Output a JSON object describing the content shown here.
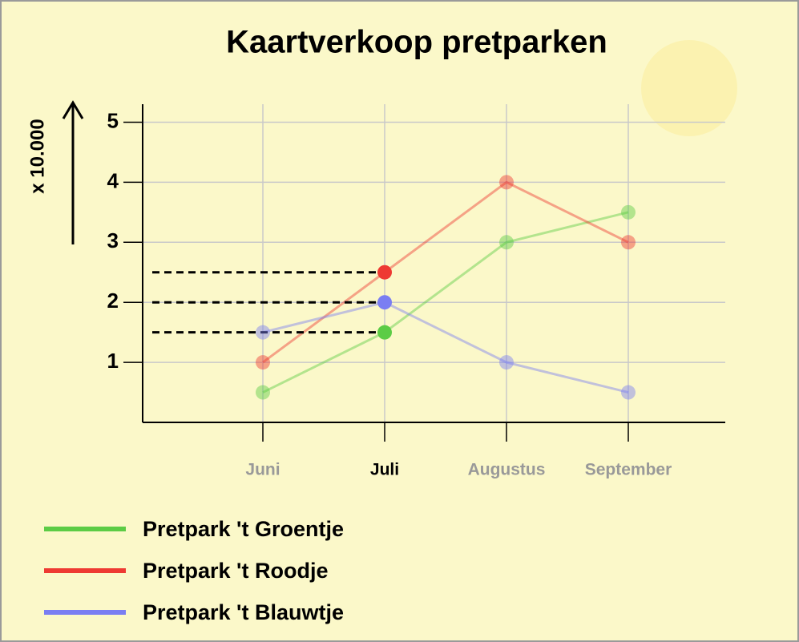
{
  "chart_data": {
    "type": "line",
    "title": "Kaartverkoop pretparken",
    "y_label": "x 10.000",
    "categories": [
      "Juni",
      "Juli",
      "Augustus",
      "September"
    ],
    "highlight": "Juli",
    "series": [
      {
        "name": "Pretpark 't Groentje",
        "color": "#5ccc45",
        "values": [
          0.5,
          1.5,
          3,
          3.5
        ]
      },
      {
        "name": "Pretpark 't Roodje",
        "color": "#ee3a32",
        "values": [
          1,
          2.5,
          4,
          3
        ]
      },
      {
        "name": "Pretpark 't Blauwtje",
        "color": "#7a7ef2",
        "values": [
          1.5,
          2,
          1,
          0.5
        ]
      }
    ],
    "ylim": [
      0,
      5.3
    ],
    "yticks": [
      1,
      2,
      3,
      4,
      5
    ],
    "grid": true
  }
}
